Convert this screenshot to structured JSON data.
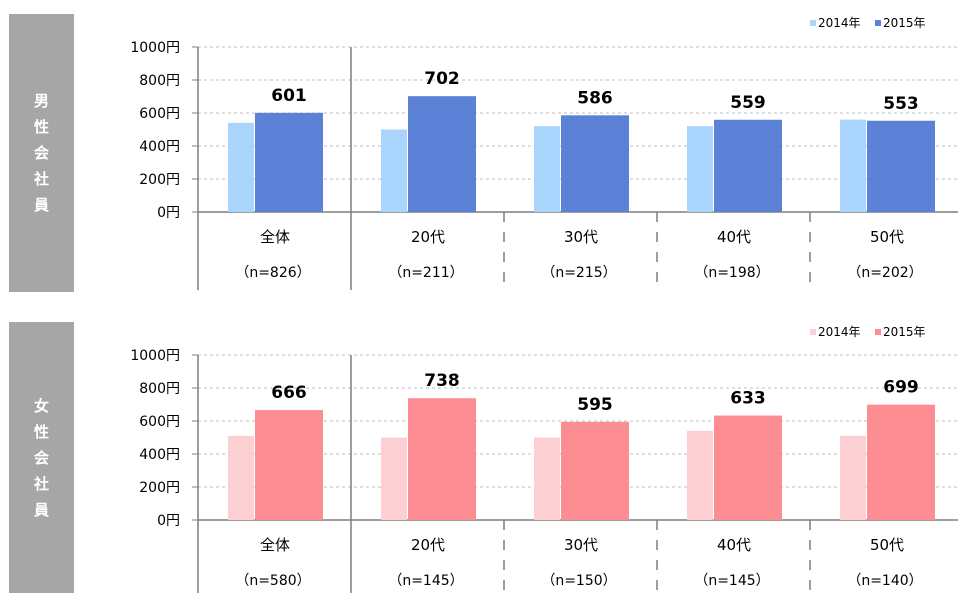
{
  "panels": [
    {
      "side_label": "男性会社員",
      "colors": {
        "y2014": "#a9d4fb",
        "y2015": "#5b82d6"
      }
    },
    {
      "side_label": "女性会社員",
      "colors": {
        "y2014": "#fcd0d2",
        "y2015": "#fb8d93"
      }
    }
  ],
  "chart_data": [
    {
      "type": "bar",
      "title": "",
      "categories": [
        "全体",
        "20代",
        "30代",
        "40代",
        "50代"
      ],
      "category_notes": [
        "（n=826）",
        "（n=211）",
        "（n=215）",
        "（n=198）",
        "（n=202）"
      ],
      "series": [
        {
          "name": "2014年",
          "values": [
            540,
            500,
            520,
            520,
            560
          ]
        },
        {
          "name": "2015年",
          "values": [
            601,
            702,
            586,
            559,
            553
          ]
        }
      ],
      "data_labels": [
        "601",
        "702",
        "586",
        "559",
        "553"
      ],
      "yticks": [
        "0円",
        "200円",
        "400円",
        "600円",
        "800円",
        "1000円"
      ],
      "ylim": [
        0,
        1000
      ],
      "grid": true,
      "legend": "top-right"
    },
    {
      "type": "bar",
      "title": "",
      "categories": [
        "全体",
        "20代",
        "30代",
        "40代",
        "50代"
      ],
      "category_notes": [
        "（n=580）",
        "（n=145）",
        "（n=150）",
        "（n=145）",
        "（n=140）"
      ],
      "series": [
        {
          "name": "2014年",
          "values": [
            510,
            500,
            500,
            540,
            510
          ]
        },
        {
          "name": "2015年",
          "values": [
            666,
            738,
            595,
            633,
            699
          ]
        }
      ],
      "data_labels": [
        "666",
        "738",
        "595",
        "633",
        "699"
      ],
      "yticks": [
        "0円",
        "200円",
        "400円",
        "600円",
        "800円",
        "1000円"
      ],
      "ylim": [
        0,
        1000
      ],
      "grid": true,
      "legend": "top-right"
    }
  ]
}
